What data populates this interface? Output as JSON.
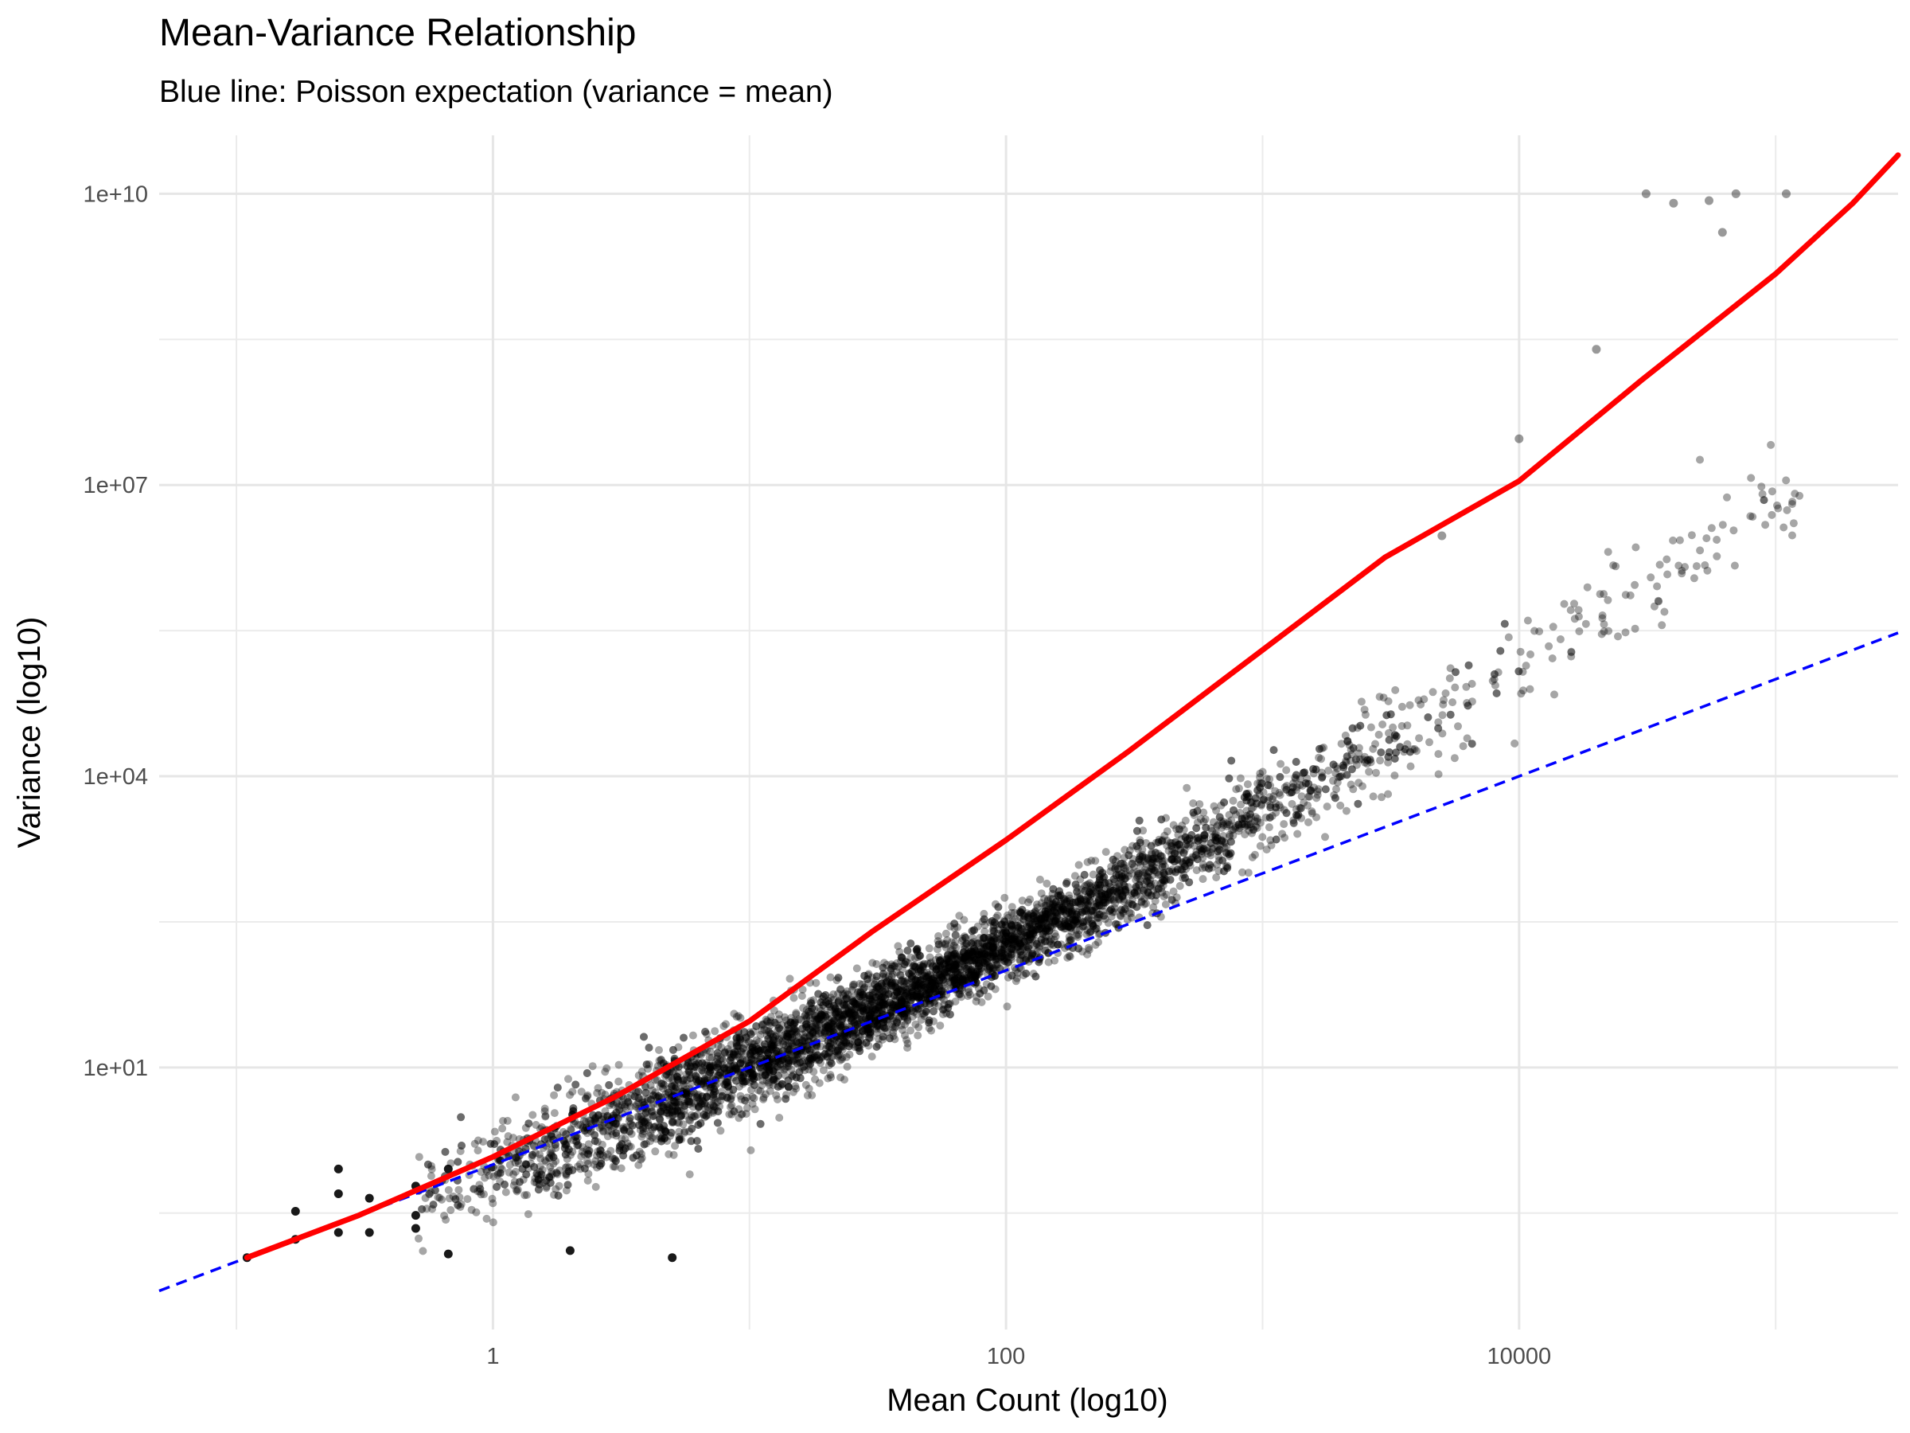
{
  "chart_data": {
    "type": "scatter",
    "title": "Mean-Variance Relationship",
    "subtitle": "Blue line: Poisson expectation (variance = mean)",
    "xlabel": "Mean Count (log10)",
    "ylabel": "Variance (log10)",
    "x_scale": "log10",
    "y_scale": "log10",
    "xlim": [
      0.05,
      300000
    ],
    "ylim": [
      0.02,
      40000000000
    ],
    "x_ticks": [
      {
        "value": 1,
        "label": "1"
      },
      {
        "value": 100,
        "label": "100"
      },
      {
        "value": 10000,
        "label": "10000"
      }
    ],
    "y_ticks": [
      {
        "value": 10,
        "label": "1e+01"
      },
      {
        "value": 10000,
        "label": "1e+04"
      },
      {
        "value": 10000000,
        "label": "1e+07"
      },
      {
        "value": 10000000000,
        "label": "1e+10"
      }
    ],
    "grid": true,
    "series": [
      {
        "name": "",
        "kind": "points",
        "color": "#000000",
        "opacity": 0.35,
        "description_points_sampled": true,
        "trend_log10": {
          "intercept": -0.05,
          "slope_low": 1.0,
          "quad": 0.075
        },
        "outliers": [
          [
            0.11,
            0.11
          ],
          [
            0.17,
            0.17
          ],
          [
            0.17,
            0.33
          ],
          [
            0.25,
            0.2
          ],
          [
            0.25,
            0.5
          ],
          [
            0.25,
            0.9
          ],
          [
            0.33,
            0.2
          ],
          [
            0.33,
            0.45
          ],
          [
            0.5,
            0.22
          ],
          [
            0.5,
            0.3
          ],
          [
            0.5,
            0.6
          ],
          [
            0.67,
            0.12
          ],
          [
            0.67,
            0.9
          ],
          [
            2.0,
            0.13
          ],
          [
            5.0,
            0.11
          ],
          [
            31250,
            10000000000
          ],
          [
            40000,
            8000000000
          ],
          [
            55000,
            8500000000
          ],
          [
            62000,
            4000000000
          ],
          [
            70000,
            10000000000
          ],
          [
            110000,
            10000000000
          ],
          [
            5000,
            3000000
          ],
          [
            10000,
            30000000
          ],
          [
            20000,
            250000000
          ]
        ]
      },
      {
        "name": "",
        "kind": "fit",
        "color": "#ff0000",
        "points": [
          [
            0.11,
            0.11
          ],
          [
            0.3,
            0.3
          ],
          [
            1,
            1.2
          ],
          [
            3,
            5
          ],
          [
            10,
            30
          ],
          [
            30,
            250
          ],
          [
            100,
            2200
          ],
          [
            300,
            18000
          ],
          [
            1000,
            200000
          ],
          [
            3000,
            1800000
          ],
          [
            10000,
            11000000
          ],
          [
            30000,
            120000000
          ],
          [
            100000,
            1500000000
          ],
          [
            200000,
            8000000000
          ],
          [
            300000,
            25000000000
          ]
        ]
      },
      {
        "name": "",
        "kind": "poisson",
        "color": "#0000ff",
        "dashed": true,
        "points": [
          [
            0.05,
            0.05
          ],
          [
            300000,
            300000
          ]
        ]
      }
    ]
  }
}
